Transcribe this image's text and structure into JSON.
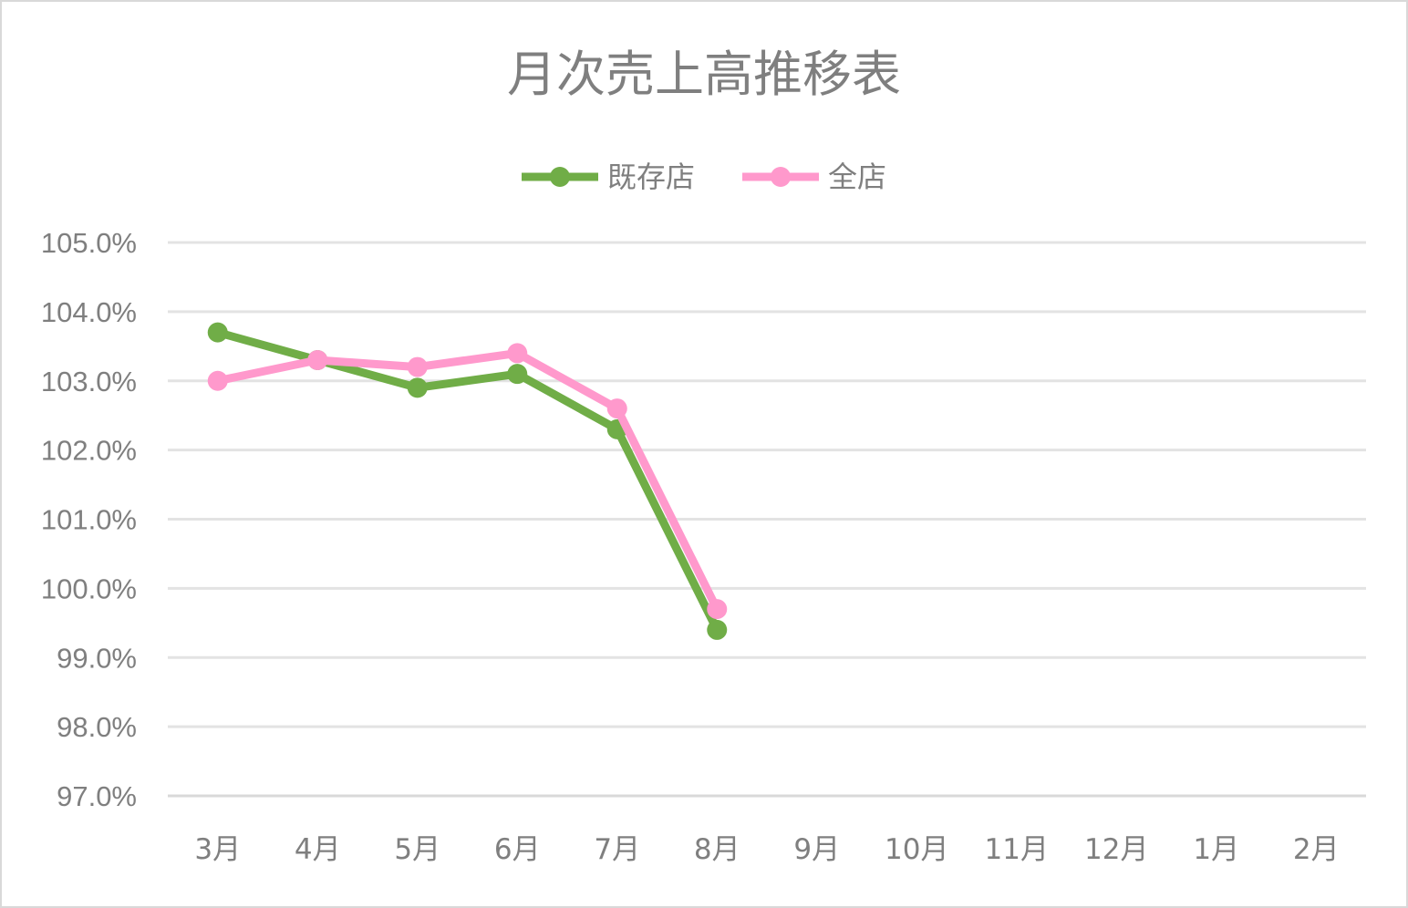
{
  "chart_data": {
    "type": "line",
    "title": "月次売上高推移表",
    "categories": [
      "3月",
      "4月",
      "5月",
      "6月",
      "7月",
      "8月",
      "9月",
      "10月",
      "11月",
      "12月",
      "1月",
      "2月"
    ],
    "series": [
      {
        "name": "既存店",
        "color": "#70ad47",
        "values": [
          103.7,
          103.3,
          102.9,
          103.1,
          102.3,
          99.4,
          null,
          null,
          null,
          null,
          null,
          null
        ]
      },
      {
        "name": "全店",
        "color": "#ff99cc",
        "values": [
          103.0,
          103.3,
          103.2,
          103.4,
          102.6,
          99.7,
          null,
          null,
          null,
          null,
          null,
          null
        ]
      }
    ],
    "yticks": [
      "97.0%",
      "98.0%",
      "99.0%",
      "100.0%",
      "101.0%",
      "102.0%",
      "103.0%",
      "104.0%",
      "105.0%"
    ],
    "ylim": [
      97,
      105
    ],
    "grid": true,
    "legend_position": "top"
  }
}
